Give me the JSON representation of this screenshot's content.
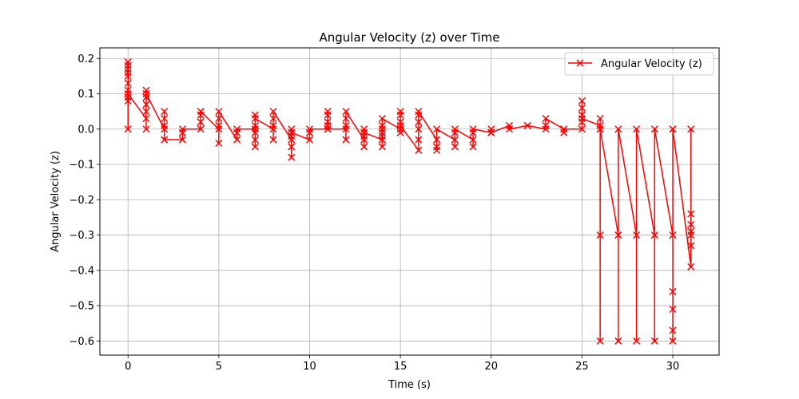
{
  "chart_data": {
    "type": "line",
    "title": "Angular Velocity (z) over Time",
    "xlabel": "Time (s)",
    "ylabel": "Angular Velocity (z)",
    "xlim": [
      -1.55,
      32.55
    ],
    "ylim": [
      -0.64,
      0.23
    ],
    "xticks": [
      0,
      5,
      10,
      15,
      20,
      25,
      30
    ],
    "yticks": [
      0.2,
      0.1,
      0.0,
      -0.1,
      -0.2,
      -0.3,
      -0.4,
      -0.5,
      -0.6
    ],
    "ytick_labels": [
      "0.2",
      "0.1",
      "0.0",
      "−0.1",
      "−0.2",
      "−0.3",
      "−0.4",
      "−0.5",
      "−0.6"
    ],
    "grid": true,
    "legend_position": "top-right",
    "series": [
      {
        "name": "Angular Velocity (z)",
        "color": "#ff0000",
        "marker": "x",
        "x": [
          0,
          0,
          0,
          0,
          0,
          0,
          0,
          0,
          0,
          0,
          0,
          1,
          1,
          1,
          1,
          1,
          1,
          1,
          2,
          2,
          2,
          2,
          2,
          3,
          3,
          3,
          4,
          4,
          4,
          4,
          5,
          5,
          5,
          5,
          5,
          6,
          6,
          6,
          7,
          7,
          7,
          7,
          7,
          7,
          7,
          8,
          8,
          8,
          8,
          8,
          9,
          9,
          9,
          9,
          9,
          9,
          10,
          10,
          10,
          11,
          11,
          11,
          11,
          11,
          11,
          12,
          12,
          12,
          12,
          12,
          13,
          13,
          13,
          13,
          13,
          14,
          14,
          14,
          14,
          14,
          14,
          14,
          15,
          15,
          15,
          15,
          15,
          15,
          16,
          16,
          16,
          16,
          16,
          16,
          17,
          17,
          17,
          17,
          18,
          18,
          18,
          18,
          19,
          19,
          19,
          19,
          20,
          20,
          20,
          21,
          21,
          22,
          22,
          23,
          23,
          23,
          24,
          24,
          24,
          25,
          25,
          25,
          25,
          25,
          25,
          26,
          26,
          26,
          26,
          26,
          26,
          27,
          27,
          27,
          28,
          28,
          28,
          29,
          29,
          29,
          30,
          30,
          30,
          30,
          30,
          30,
          30,
          31,
          31,
          31,
          31,
          31,
          31,
          31
        ],
        "y": [
          0.18,
          0.19,
          0.16,
          0.13,
          0.11,
          0.09,
          0.17,
          0.15,
          0.0,
          0.08,
          0.1,
          0.03,
          0.0,
          0.05,
          0.07,
          0.09,
          0.11,
          0.1,
          0.0,
          0.01,
          0.03,
          0.05,
          -0.03,
          -0.03,
          -0.01,
          0.0,
          0.0,
          0.02,
          0.04,
          0.05,
          0.0,
          -0.04,
          0.01,
          0.03,
          0.05,
          -0.03,
          -0.01,
          0.0,
          0.0,
          -0.05,
          -0.03,
          -0.01,
          0.01,
          0.04,
          0.03,
          0.0,
          -0.03,
          0.01,
          0.03,
          0.05,
          -0.03,
          -0.08,
          -0.05,
          -0.02,
          0.0,
          -0.01,
          -0.03,
          -0.01,
          0.0,
          0.0,
          0.01,
          0.02,
          0.04,
          0.05,
          0.0,
          0.0,
          -0.03,
          0.01,
          0.03,
          0.05,
          -0.03,
          -0.05,
          -0.02,
          0.0,
          -0.01,
          -0.03,
          -0.05,
          -0.02,
          0.0,
          0.01,
          -0.01,
          0.03,
          0.0,
          0.02,
          0.04,
          0.05,
          -0.01,
          0.01,
          -0.06,
          -0.03,
          0.0,
          0.02,
          0.04,
          0.05,
          -0.03,
          -0.05,
          -0.06,
          0.0,
          -0.03,
          -0.05,
          -0.01,
          0.0,
          -0.03,
          -0.05,
          -0.01,
          0.0,
          -0.01,
          0.0,
          -0.01,
          0.01,
          0.0,
          0.01,
          0.01,
          0.0,
          0.01,
          0.03,
          0.0,
          -0.01,
          0.0,
          0.0,
          0.02,
          0.04,
          0.06,
          0.08,
          0.03,
          0.01,
          0.03,
          0.0,
          -0.3,
          -0.6,
          0.0,
          -0.3,
          -0.6,
          0.0,
          -0.3,
          -0.6,
          0.0,
          -0.3,
          -0.6,
          0.0,
          -0.3,
          -0.6,
          -0.57,
          -0.51,
          -0.46,
          0.0,
          0.0,
          -0.39,
          -0.33,
          -0.3,
          -0.29,
          -0.27,
          -0.24,
          0.0
        ]
      }
    ]
  }
}
